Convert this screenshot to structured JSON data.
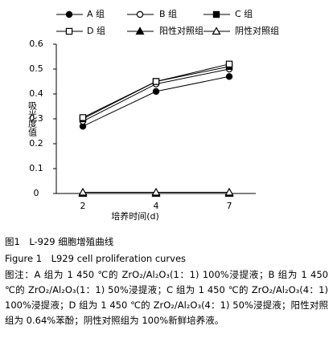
{
  "chart_data": {
    "type": "line",
    "x_label": "培养时间(d)",
    "y_label": "吸光度值",
    "categories": [
      "2",
      "4",
      "7"
    ],
    "ylim": [
      0,
      0.6
    ],
    "yticks": [
      0,
      0.1,
      0.2,
      0.3,
      0.4,
      0.5,
      0.6
    ],
    "series": [
      {
        "name": "A 组",
        "color": "#000000",
        "marker": "circle",
        "filled": true,
        "values": [
          0.27,
          0.41,
          0.47
        ]
      },
      {
        "name": "B 组",
        "color": "#000000",
        "marker": "circle",
        "filled": false,
        "values": [
          0.29,
          0.44,
          0.5
        ]
      },
      {
        "name": "C 组",
        "color": "#000000",
        "marker": "square",
        "filled": true,
        "values": [
          0.3,
          0.45,
          0.51
        ]
      },
      {
        "name": "D 组",
        "color": "#000000",
        "marker": "square",
        "filled": false,
        "values": [
          0.305,
          0.45,
          0.52
        ]
      },
      {
        "name": "阳性对照组",
        "color": "#000000",
        "marker": "triangle",
        "filled": true,
        "values": [
          0,
          0,
          0
        ]
      },
      {
        "name": "阴性对照组",
        "color": "#000000",
        "marker": "triangle",
        "filled": false,
        "values": [
          0.005,
          0.005,
          0.005
        ]
      }
    ]
  },
  "caption": {
    "title_cn": "图1　L-929 细胞增殖曲线",
    "title_en": "Figure 1　L929 cell proliferation curves",
    "note": "图注：A 组为 1 450 ℃的 ZrO₂/Al₂O₃(1：1) 100%浸提液；B 组为 1 450 ℃的 ZrO₂/Al₂O₃(1：1) 50%浸提液；C 组为 1 450 ℃的 ZrO₂/Al₂O₃(4：1) 100%浸提液；D 组为 1 450 ℃的 ZrO₂/Al₂O₃(4：1) 50%浸提液；阳性对照组为 0.64%苯酚；阴性对照组为 100%新鲜培养液。"
  }
}
